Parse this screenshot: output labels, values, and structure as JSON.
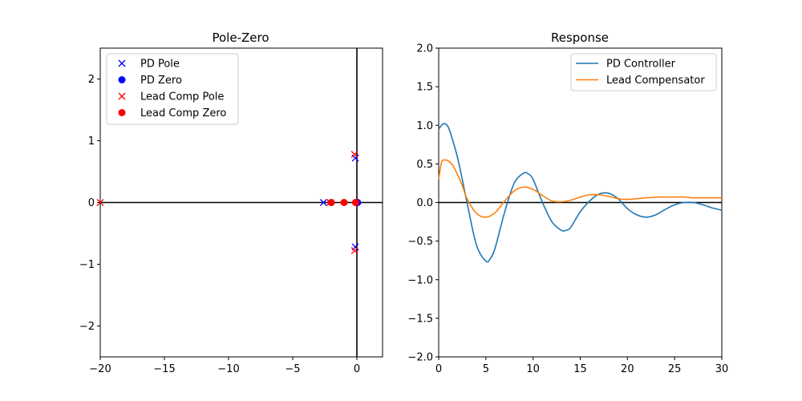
{
  "chart_data": [
    {
      "type": "scatter",
      "title": "Pole-Zero",
      "xlabel": "",
      "ylabel": "",
      "xlim": [
        -20,
        2
      ],
      "ylim": [
        -2.5,
        2.5
      ],
      "xticks": [
        -20,
        -15,
        -10,
        -5,
        0
      ],
      "yticks": [
        -2,
        -1,
        0,
        1,
        2
      ],
      "xtick_labels": [
        "−20",
        "−15",
        "−10",
        "−5",
        "0"
      ],
      "ytick_labels": [
        "−2",
        "−1",
        "0",
        "1",
        "2"
      ],
      "grid": false,
      "legend_position": "top-left",
      "series": [
        {
          "name": "PD Pole",
          "marker": "x",
          "color": "#0000ff",
          "points": [
            [
              -2.6,
              0
            ],
            [
              -0.12,
              0.72
            ],
            [
              -0.12,
              -0.72
            ]
          ]
        },
        {
          "name": "PD Zero",
          "marker": "o",
          "color": "#0000ff",
          "points": [
            [
              0.05,
              0
            ]
          ]
        },
        {
          "name": "Lead Comp Pole",
          "marker": "x",
          "color": "#ff0000",
          "points": [
            [
              -20,
              0
            ],
            [
              -2.1,
              0
            ],
            [
              -0.18,
              0.78
            ],
            [
              -0.18,
              -0.78
            ]
          ]
        },
        {
          "name": "Lead Comp Zero",
          "marker": "o",
          "color": "#ff0000",
          "points": [
            [
              -2.0,
              0
            ],
            [
              -1.0,
              0
            ],
            [
              -0.1,
              0
            ]
          ]
        }
      ]
    },
    {
      "type": "line",
      "title": "Response",
      "xlabel": "",
      "ylabel": "",
      "xlim": [
        0,
        30
      ],
      "ylim": [
        -2.0,
        2.0
      ],
      "xticks": [
        0,
        5,
        10,
        15,
        20,
        25,
        30
      ],
      "yticks": [
        -2.0,
        -1.5,
        -1.0,
        -0.5,
        0.0,
        0.5,
        1.0,
        1.5,
        2.0
      ],
      "xtick_labels": [
        "0",
        "5",
        "10",
        "15",
        "20",
        "25",
        "30"
      ],
      "ytick_labels": [
        "−2.0",
        "−1.5",
        "−1.0",
        "−0.5",
        "0.0",
        "0.5",
        "1.0",
        "1.5",
        "2.0"
      ],
      "grid": false,
      "legend_position": "top-right",
      "series": [
        {
          "name": "PD Controller",
          "color": "#1f77b4",
          "x": [
            0,
            0.5,
            1,
            1.5,
            2,
            2.5,
            3,
            4,
            5,
            5.5,
            6,
            7,
            8,
            9,
            9.5,
            10,
            11,
            12,
            13,
            13.5,
            14,
            15,
            16,
            17,
            18,
            19,
            20,
            21,
            22,
            23,
            24,
            25,
            26,
            27,
            28,
            29,
            30
          ],
          "values": [
            0.95,
            1.02,
            0.98,
            0.8,
            0.58,
            0.3,
            0.0,
            -0.55,
            -0.76,
            -0.72,
            -0.58,
            -0.12,
            0.25,
            0.38,
            0.37,
            0.3,
            0.0,
            -0.25,
            -0.36,
            -0.36,
            -0.32,
            -0.12,
            0.02,
            0.11,
            0.12,
            0.05,
            -0.08,
            -0.16,
            -0.19,
            -0.16,
            -0.09,
            -0.03,
            0.0,
            0.0,
            -0.03,
            -0.07,
            -0.1
          ]
        },
        {
          "name": "Lead Compensator",
          "color": "#ff7f0e",
          "x": [
            0,
            0.3,
            0.6,
            1,
            1.5,
            2,
            2.5,
            3,
            4,
            5,
            6,
            7,
            8,
            9,
            10,
            11,
            12,
            13,
            14,
            15,
            16,
            17,
            18,
            19,
            20,
            21,
            22,
            23,
            24,
            25,
            26,
            27,
            28,
            29,
            30
          ],
          "values": [
            0.3,
            0.52,
            0.55,
            0.54,
            0.48,
            0.36,
            0.22,
            0.05,
            -0.14,
            -0.19,
            -0.13,
            0.02,
            0.15,
            0.2,
            0.17,
            0.09,
            0.02,
            0.01,
            0.03,
            0.07,
            0.1,
            0.1,
            0.08,
            0.05,
            0.04,
            0.05,
            0.06,
            0.07,
            0.07,
            0.07,
            0.07,
            0.06,
            0.06,
            0.06,
            0.06
          ]
        }
      ]
    }
  ]
}
